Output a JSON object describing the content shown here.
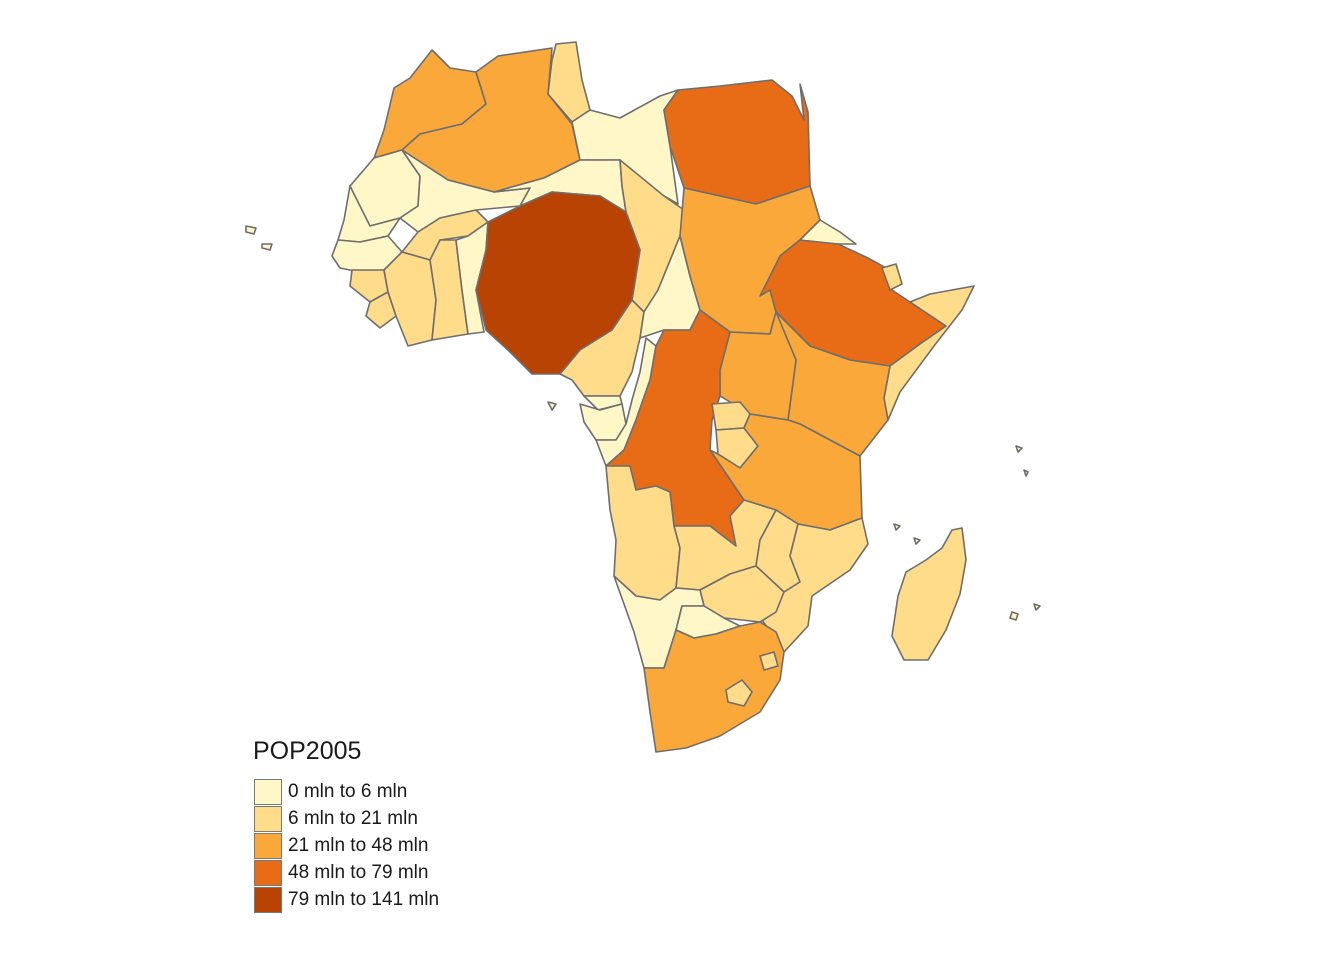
{
  "legend": {
    "title": "POP2005",
    "items": [
      {
        "label": "0 mln to 6 mln",
        "color": "#fff7c7"
      },
      {
        "label": "6 mln to 21 mln",
        "color": "#fedc8a"
      },
      {
        "label": "21 mln to 48 mln",
        "color": "#fba83b"
      },
      {
        "label": "48 mln to 79 mln",
        "color": "#e86c16"
      },
      {
        "label": "79 mln to 141 mln",
        "color": "#b84302"
      }
    ]
  }
}
